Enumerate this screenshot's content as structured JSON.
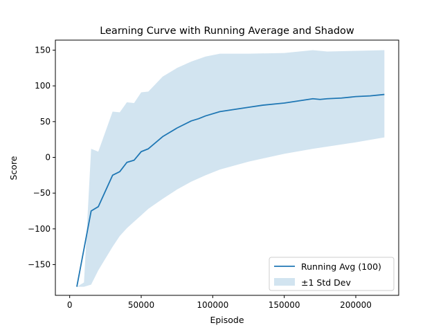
{
  "chart_data": {
    "type": "line",
    "title": "Learning Curve with Running Average and Shadow",
    "xlabel": "Episode",
    "ylabel": "Score",
    "xlim": [
      -10000,
      230000
    ],
    "ylim": [
      -193,
      164
    ],
    "xticks": [
      0,
      50000,
      100000,
      150000,
      200000
    ],
    "xtick_labels": [
      "0",
      "50000",
      "100000",
      "150000",
      "200000"
    ],
    "yticks": [
      -150,
      -100,
      -50,
      0,
      50,
      100,
      150
    ],
    "ytick_labels": [
      "−150",
      "−100",
      "−50",
      "0",
      "50",
      "100",
      "150"
    ],
    "grid": false,
    "legend_position": "lower-right",
    "colors": {
      "line": "#1f77b4",
      "band": "#1f77b4",
      "band_alpha": 0.2
    },
    "series": [
      {
        "name": "Running Avg (100)",
        "kind": "line",
        "x": [
          5000,
          15000,
          20000,
          30000,
          35000,
          40000,
          45000,
          50000,
          55000,
          65000,
          75000,
          85000,
          90000,
          95000,
          105000,
          115000,
          125000,
          135000,
          145000,
          150000,
          160000,
          170000,
          175000,
          180000,
          190000,
          200000,
          210000,
          220000
        ],
        "y": [
          -181,
          -75,
          -69,
          -25,
          -20,
          -7,
          -4,
          8,
          12,
          29,
          41,
          51,
          54,
          58,
          64,
          67,
          70,
          73,
          75,
          76,
          79,
          82,
          81,
          82,
          83,
          85,
          86,
          88
        ]
      },
      {
        "name": "±1 Std Dev",
        "kind": "band",
        "x": [
          5000,
          10000,
          15000,
          20000,
          30000,
          35000,
          40000,
          45000,
          50000,
          55000,
          65000,
          75000,
          85000,
          95000,
          105000,
          125000,
          150000,
          170000,
          180000,
          200000,
          220000
        ],
        "upper": [
          -181,
          -175,
          12,
          8,
          64,
          63,
          77,
          76,
          91,
          92,
          113,
          125,
          134,
          141,
          145,
          145,
          146,
          150,
          148,
          149,
          150
        ],
        "lower": [
          -181,
          -181,
          -178,
          -158,
          -125,
          -110,
          -99,
          -90,
          -81,
          -72,
          -58,
          -45,
          -34,
          -25,
          -17,
          -6,
          5,
          12,
          15,
          21,
          28
        ]
      }
    ]
  }
}
